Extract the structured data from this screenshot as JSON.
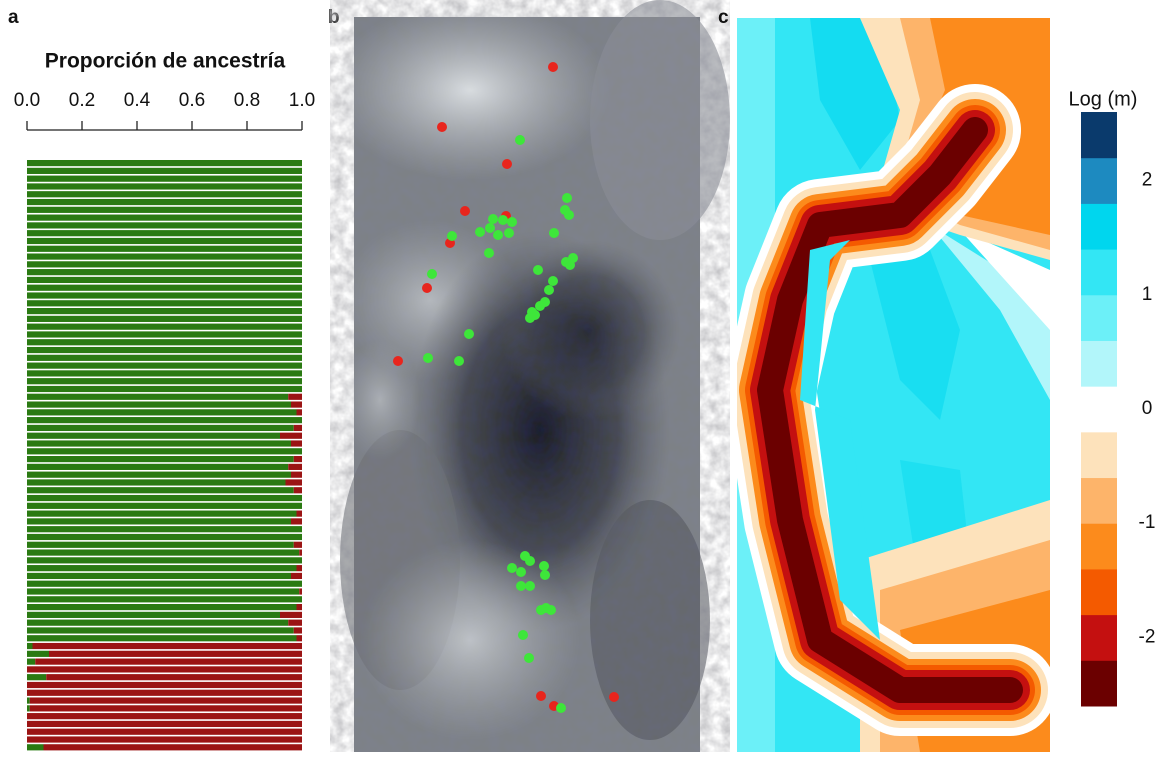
{
  "chart_data": [
    {
      "type": "stacked-barh",
      "panel": "a",
      "title": "Proporción de ancestría",
      "xlim": [
        0,
        1
      ],
      "xticks": [
        {
          "value": 0,
          "label": "0.0"
        },
        {
          "value": 0.2,
          "label": "0.2"
        },
        {
          "value": 0.4,
          "label": "0.4"
        },
        {
          "value": 0.6,
          "label": "0.6"
        },
        {
          "value": 0.8,
          "label": "0.8"
        },
        {
          "value": 1,
          "label": "1.0"
        }
      ],
      "series": [
        {
          "color": "#2a7a12",
          "values": [
            1,
            1,
            1,
            1,
            1,
            1,
            1,
            1,
            1,
            1,
            1,
            1,
            1,
            1,
            1,
            1,
            1,
            1,
            1,
            1,
            1,
            1,
            1,
            1,
            1,
            1,
            1,
            1,
            1,
            1,
            0.95,
            0.96,
            0.98,
            1,
            0.97,
            0.92,
            0.96,
            1,
            0.97,
            0.95,
            0.96,
            0.94,
            0.97,
            1,
            1,
            0.98,
            0.96,
            1,
            1,
            0.97,
            0.99,
            1,
            0.98,
            0.96,
            1,
            0.99,
            1,
            0.98,
            0.92,
            0.95,
            0.97,
            0.98,
            0.02,
            0.08,
            0.03,
            0,
            0.07,
            0,
            0,
            0.01,
            0.01,
            0,
            0,
            0,
            0,
            0.06
          ]
        },
        {
          "color": "#9b1414",
          "values": [
            0,
            0,
            0,
            0,
            0,
            0,
            0,
            0,
            0,
            0,
            0,
            0,
            0,
            0,
            0,
            0,
            0,
            0,
            0,
            0,
            0,
            0,
            0,
            0,
            0,
            0,
            0,
            0,
            0,
            0,
            0.05,
            0.04,
            0.02,
            0,
            0.03,
            0.08,
            0.04,
            0,
            0.03,
            0.05,
            0.04,
            0.06,
            0.03,
            0,
            0,
            0.02,
            0.04,
            0,
            0,
            0.03,
            0.01,
            0,
            0.02,
            0.04,
            0,
            0.01,
            0,
            0.02,
            0.08,
            0.05,
            0.03,
            0.02,
            0.98,
            0.92,
            0.97,
            1,
            0.93,
            1,
            1,
            0.99,
            0.99,
            1,
            1,
            1,
            1,
            0.94
          ]
        }
      ]
    },
    {
      "type": "map",
      "panel": "b"
    },
    {
      "type": "contour",
      "panel": "c",
      "colorbar_title": "Log (m)",
      "clim": [
        -2.6,
        2.6
      ],
      "cticks": [
        -2,
        -1,
        0,
        1,
        2
      ],
      "colors": [
        "#6b0000",
        "#c41010",
        "#f45a00",
        "#fc8b1c",
        "#fdb46a",
        "#fde2bb",
        "#ffffff",
        "#b2f6fa",
        "#6cf0f8",
        "#33e6f4",
        "#00d6ee",
        "#1d8ac0",
        "#0a3a6c"
      ]
    }
  ]
}
